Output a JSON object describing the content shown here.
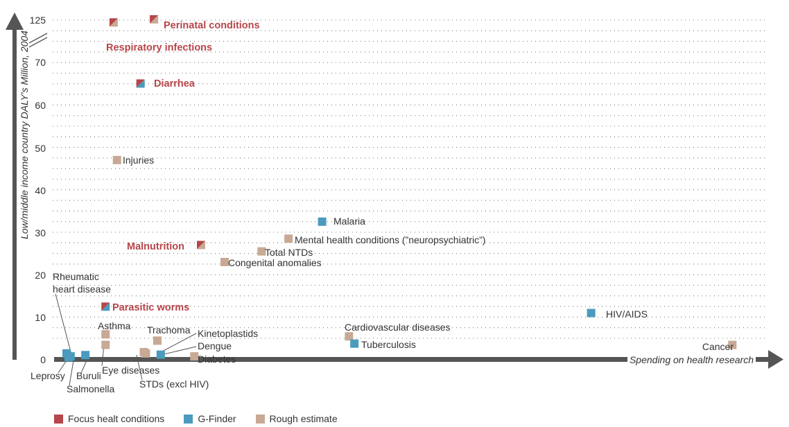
{
  "chart_data": {
    "type": "scatter",
    "title": "",
    "xlabel": "Spending on health research",
    "ylabel": "Low/middle income country DALY's Million, 2004",
    "y_ticks": [
      "0",
      "10",
      "20",
      "30",
      "40",
      "50",
      "60",
      "70",
      "125"
    ],
    "axis_break": "between 70 and 125 on the y-axis",
    "grid": "horizontal dotted",
    "legend_placement": "bottom-left",
    "categories": [
      {
        "key": "focus",
        "name": "Focus healt conditions",
        "color": "#b7454a"
      },
      {
        "key": "gfinder",
        "name": "G-Finder",
        "color": "#4a9bbd"
      },
      {
        "key": "rough",
        "name": "Rough estimate",
        "color": "#c8a995"
      }
    ],
    "points": [
      {
        "label": "Perinatal conditions",
        "category": "focus",
        "x": 0.13,
        "y": 126,
        "fill": "rough"
      },
      {
        "label": "Respiratory infections",
        "category": "focus",
        "x": 0.07,
        "y": 122,
        "fill": "rough"
      },
      {
        "label": "Diarrhea",
        "category": "focus",
        "x": 0.11,
        "y": 65,
        "fill": "gfinder"
      },
      {
        "label": "Injuries",
        "category": "rough",
        "x": 0.075,
        "y": 47
      },
      {
        "label": "Malaria",
        "category": "gfinder",
        "x": 0.38,
        "y": 32.5
      },
      {
        "label": "Mental health conditions (”neuropsychiatric”)",
        "category": "rough",
        "x": 0.33,
        "y": 28.5
      },
      {
        "label": "Malnutrition",
        "category": "focus",
        "x": 0.2,
        "y": 27,
        "fill": "rough"
      },
      {
        "label": "Total NTDs",
        "category": "rough",
        "x": 0.29,
        "y": 25.5
      },
      {
        "label": "Congenital anomalies",
        "category": "rough",
        "x": 0.235,
        "y": 23
      },
      {
        "label": "Parasitic worms",
        "category": "focus",
        "x": 0.058,
        "y": 12.5,
        "fill": "gfinder"
      },
      {
        "label": "HIV/AIDS",
        "category": "gfinder",
        "x": 0.78,
        "y": 11
      },
      {
        "label": "Asthma",
        "category": "rough",
        "x": 0.058,
        "y": 6
      },
      {
        "label": "Trachoma",
        "category": "rough",
        "x": 0.135,
        "y": 4.5
      },
      {
        "label": "Cardiovascular diseases",
        "category": "rough",
        "x": 0.42,
        "y": 5.5
      },
      {
        "label": "Tuberculosis",
        "category": "gfinder",
        "x": 0.428,
        "y": 3.8
      },
      {
        "label": "Cancer",
        "category": "rough",
        "x": 0.99,
        "y": 3.5
      },
      {
        "label": "Eye diseases",
        "category": "rough",
        "x": 0.058,
        "y": 3.5
      },
      {
        "label": "Kinetoplastids",
        "category": "gfinder",
        "x": 0.14,
        "y": 1.2
      },
      {
        "label": "STDs (excl HIV)",
        "category": "rough",
        "x": 0.115,
        "y": 1.8
      },
      {
        "label": "Dengue",
        "category": "rough",
        "x": 0.118,
        "y": 1.5
      },
      {
        "label": "Diabetes",
        "category": "rough",
        "x": 0.19,
        "y": 0.8
      },
      {
        "label": "Rheumatic heart disease",
        "category": "gfinder",
        "x": 0.003,
        "y": 0.6
      },
      {
        "label": "Leprosy",
        "category": "gfinder",
        "x": 0.0,
        "y": 1.5
      },
      {
        "label": "Salmonella",
        "category": "gfinder",
        "x": 0.006,
        "y": 0.8
      },
      {
        "label": "Buruli",
        "category": "gfinder",
        "x": 0.028,
        "y": 1.1
      }
    ]
  }
}
